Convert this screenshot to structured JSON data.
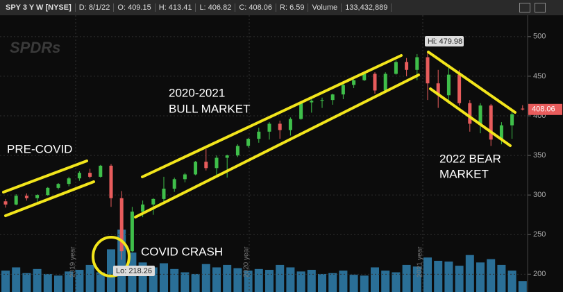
{
  "chart_data": {
    "type": "candlestick",
    "header": [
      "SPY 3 Y W [NYSE]",
      "D: 8/1/22",
      "O: 409.15",
      "H: 413.41",
      "L: 406.82",
      "C: 408.06",
      "R: 6.59",
      "Volume",
      "133,432,889"
    ],
    "watermark": "SPDRs",
    "year_labels": [
      "2019 year",
      "2020 year",
      "2021 year"
    ],
    "annotations": [
      "PRE-COVID",
      "2020-2021",
      "BULL MARKET",
      "COVID CRASH",
      "2022 BEAR",
      "MARKET"
    ],
    "high_label": "Hi: 479.98",
    "low_label": "Lo: 218.26",
    "last_label": "408.06",
    "candles": [
      [
        292,
        295,
        284,
        288
      ],
      [
        288,
        301,
        287,
        299
      ],
      [
        299,
        302,
        293,
        296
      ],
      [
        296,
        301,
        290,
        300
      ],
      [
        300,
        310,
        299,
        309
      ],
      [
        309,
        315,
        307,
        314
      ],
      [
        314,
        323,
        311,
        321
      ],
      [
        321,
        330,
        318,
        328
      ],
      [
        328,
        333,
        321,
        323
      ],
      [
        323,
        338,
        322,
        337
      ],
      [
        337,
        339,
        285,
        296
      ],
      [
        296,
        305,
        218.26,
        229
      ],
      [
        229,
        285,
        228,
        279
      ],
      [
        279,
        293,
        272,
        288
      ],
      [
        288,
        296,
        275,
        295
      ],
      [
        295,
        323,
        290,
        308
      ],
      [
        308,
        322,
        304,
        320
      ],
      [
        320,
        328,
        316,
        326
      ],
      [
        326,
        343,
        325,
        342
      ],
      [
        342,
        358,
        331,
        334
      ],
      [
        334,
        350,
        322,
        347
      ],
      [
        347,
        351,
        322,
        350
      ],
      [
        350,
        364,
        348,
        362
      ],
      [
        362,
        372,
        360,
        371
      ],
      [
        371,
        385,
        366,
        380
      ],
      [
        380,
        392,
        370,
        390
      ],
      [
        390,
        394,
        371,
        382
      ],
      [
        382,
        398,
        375,
        396
      ],
      [
        396,
        418,
        395,
        417
      ],
      [
        417,
        422,
        404,
        419
      ],
      [
        419,
        423,
        410,
        420
      ],
      [
        420,
        428,
        414,
        427
      ],
      [
        427,
        440,
        421,
        439
      ],
      [
        439,
        446,
        435,
        445
      ],
      [
        445,
        454,
        444,
        453
      ],
      [
        453,
        455,
        428,
        432
      ],
      [
        432,
        455,
        430,
        453
      ],
      [
        453,
        470,
        452,
        468
      ],
      [
        468,
        473,
        450,
        458
      ],
      [
        458,
        478,
        445,
        474
      ],
      [
        474,
        479.98,
        420,
        441
      ],
      [
        441,
        458,
        410,
        426
      ],
      [
        426,
        461,
        415,
        452
      ],
      [
        452,
        458,
        413,
        416
      ],
      [
        416,
        420,
        380,
        390
      ],
      [
        390,
        416,
        378,
        413
      ],
      [
        413,
        415,
        362,
        370
      ],
      [
        370,
        392,
        364,
        388
      ],
      [
        388,
        408,
        371,
        402
      ],
      [
        409.15,
        413.41,
        406.82,
        408.06
      ]
    ],
    "volumes": [
      260000000,
      300000000,
      230000000,
      280000000,
      220000000,
      200000000,
      250000000,
      270000000,
      330000000,
      240000000,
      520000000,
      760000000,
      480000000,
      360000000,
      300000000,
      350000000,
      280000000,
      240000000,
      220000000,
      340000000,
      300000000,
      330000000,
      290000000,
      260000000,
      280000000,
      270000000,
      330000000,
      300000000,
      250000000,
      270000000,
      220000000,
      230000000,
      260000000,
      210000000,
      200000000,
      300000000,
      260000000,
      240000000,
      330000000,
      310000000,
      420000000,
      380000000,
      370000000,
      320000000,
      450000000,
      360000000,
      400000000,
      330000000,
      260000000,
      133432889
    ],
    "up_color": "#3fbf4a",
    "down_color": "#e85c5c",
    "volume_color": "#2a6f97",
    "ylim": [
      177.5,
      527
    ],
    "yticks": [
      200,
      250,
      300,
      350,
      400,
      450,
      500
    ],
    "grid": true
  }
}
